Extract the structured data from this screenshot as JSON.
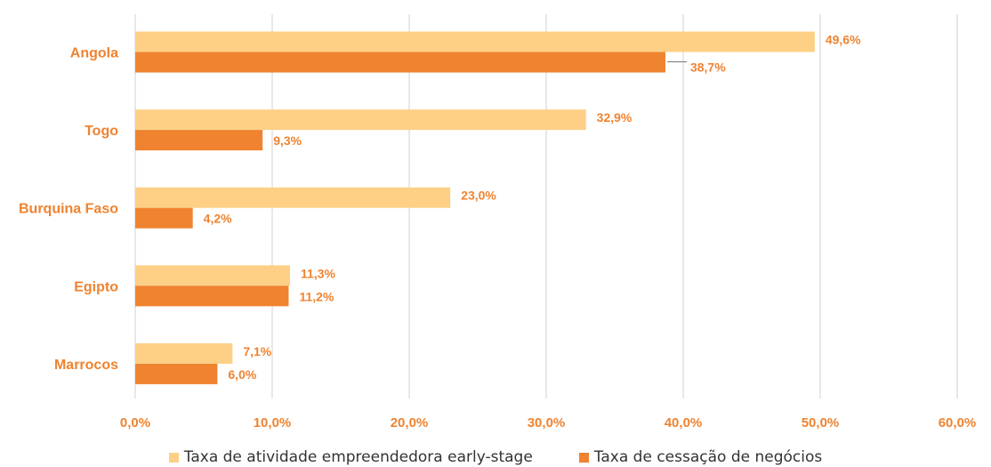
{
  "chart_data": {
    "type": "bar",
    "orientation": "horizontal",
    "categories": [
      "Angola",
      "Togo",
      "Burquina Faso",
      "Egipto",
      "Marrocos"
    ],
    "series": [
      {
        "name": "Taxa de atividade empreendedora early-stage",
        "values": [
          49.6,
          32.9,
          23.0,
          11.3,
          7.1
        ],
        "labels": [
          "49,6%",
          "32,9%",
          "23,0%",
          "11,3%",
          "7,1%"
        ],
        "color": "#FDD085"
      },
      {
        "name": "Taxa de cessação de negócios",
        "values": [
          38.7,
          9.3,
          4.2,
          11.2,
          6.0
        ],
        "labels": [
          "38,7%",
          "9,3%",
          "4,2%",
          "11,2%",
          "6,0%"
        ],
        "color": "#EF8330"
      }
    ],
    "xlim": [
      0,
      60
    ],
    "xticks": [
      0,
      10,
      20,
      30,
      40,
      50,
      60
    ],
    "xtick_labels": [
      "0,0%",
      "10,0%",
      "20,0%",
      "30,0%",
      "40,0%",
      "50,0%",
      "60,0%"
    ],
    "grid": true,
    "legend_position": "bottom",
    "label_color": "#EF8330",
    "grid_color": "#D9D9D9"
  }
}
